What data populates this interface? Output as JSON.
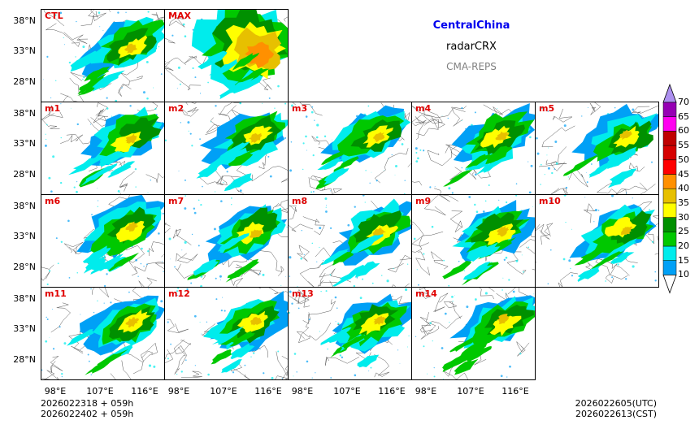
{
  "header": {
    "region": "CentralChina",
    "variable": "radarCRX",
    "model": "CMA-REPS"
  },
  "panels": [
    "CTL",
    "MAX",
    "m1",
    "m2",
    "m3",
    "m4",
    "m5",
    "m6",
    "m7",
    "m8",
    "m9",
    "m10",
    "m11",
    "m12",
    "m13",
    "m14"
  ],
  "axes": {
    "lat_ticks": [
      "38°N",
      "33°N",
      "28°N"
    ],
    "lon_ticks": [
      "98°E",
      "107°E",
      "116°E"
    ]
  },
  "colorbar": {
    "levels": [
      "10",
      "15",
      "20",
      "25",
      "30",
      "35",
      "40",
      "45",
      "50",
      "55",
      "60",
      "65",
      "70"
    ],
    "colors": [
      "#00a0f6",
      "#00ecec",
      "#00c800",
      "#009000",
      "#ffff00",
      "#e7c000",
      "#ff9000",
      "#ff0000",
      "#d60000",
      "#c00000",
      "#ff00f0",
      "#9600b4",
      "#ad90f0"
    ]
  },
  "footer": {
    "init_line1": "2026022318  +  059h",
    "init_line2": "2026022402  +  059h",
    "valid_utc": "2026022605(UTC)",
    "valid_cst": "2026022613(CST)"
  }
}
